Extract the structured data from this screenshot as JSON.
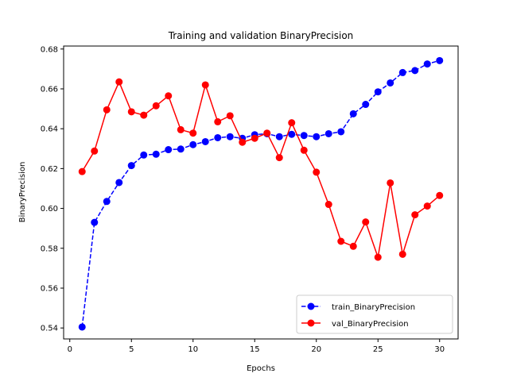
{
  "chart_data": {
    "type": "line",
    "title": "Training and validation BinaryPrecision",
    "xlabel": "Epochs",
    "ylabel": "BinaryPrecision",
    "xlim": [
      -0.5,
      31.5
    ],
    "ylim": [
      0.5345,
      0.6815
    ],
    "x_ticks": [
      0,
      5,
      10,
      15,
      20,
      25,
      30
    ],
    "y_ticks": [
      0.54,
      0.56,
      0.58,
      0.6,
      0.62,
      0.64,
      0.66,
      0.68
    ],
    "grid": false,
    "legend_position": "lower right",
    "x": [
      1,
      2,
      3,
      4,
      5,
      6,
      7,
      8,
      9,
      10,
      11,
      12,
      13,
      14,
      15,
      16,
      17,
      18,
      19,
      20,
      21,
      22,
      23,
      24,
      25,
      26,
      27,
      28,
      29,
      30
    ],
    "series": [
      {
        "name": "train_BinaryPrecision",
        "color": "#0000ff",
        "line_style": "dashed",
        "marker": "circle",
        "values": [
          0.5405,
          0.593,
          0.6035,
          0.613,
          0.6215,
          0.6268,
          0.6272,
          0.6295,
          0.6298,
          0.632,
          0.6335,
          0.6355,
          0.636,
          0.6352,
          0.637,
          0.6375,
          0.636,
          0.6372,
          0.6366,
          0.636,
          0.6375,
          0.6385,
          0.6475,
          0.6522,
          0.6585,
          0.663,
          0.6682,
          0.6692,
          0.6725,
          0.6742
        ]
      },
      {
        "name": "val_BinaryPrecision",
        "color": "#ff0000",
        "line_style": "solid",
        "marker": "circle",
        "values": [
          0.6185,
          0.6288,
          0.6495,
          0.6635,
          0.6485,
          0.6468,
          0.6515,
          0.6565,
          0.6395,
          0.6378,
          0.662,
          0.6435,
          0.6465,
          0.6332,
          0.6352,
          0.6378,
          0.6255,
          0.643,
          0.6292,
          0.6182,
          0.602,
          0.5835,
          0.581,
          0.5932,
          0.5755,
          0.6128,
          0.577,
          0.5968,
          0.6012,
          0.6065
        ]
      }
    ]
  }
}
